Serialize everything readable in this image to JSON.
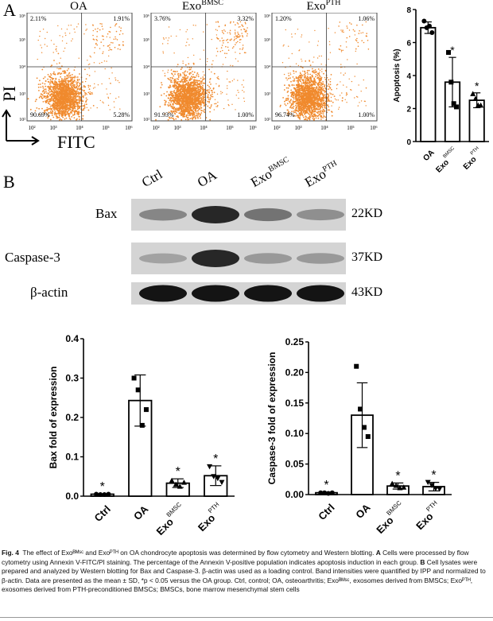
{
  "panel_a": {
    "letter": "A",
    "y_axis": "PI",
    "x_axis": "FITC",
    "ticks": [
      "10²",
      "10³",
      "10⁴",
      "10⁵",
      "10⁶"
    ],
    "plots": [
      {
        "title": "OA",
        "title_sup": "",
        "ul": "2.11%",
        "ur": "1.91%",
        "ll": "90.69%",
        "lr": "5.28%",
        "ur_density": 1.0
      },
      {
        "title": "Exo",
        "title_sup": "BMSC",
        "ul": "3.76%",
        "ur": "3.32%",
        "ll": "91.93%",
        "lr": "1.00%",
        "ur_density": 1.6
      },
      {
        "title": "Exo",
        "title_sup": "PTH",
        "ul": "1.20%",
        "ur": "1.06%",
        "ll": "96.74%",
        "lr": "1.00%",
        "ur_density": 0.6
      }
    ]
  },
  "panel_b": {
    "letter": "B"
  },
  "western_blot": {
    "lanes": [
      "Ctrl",
      "OA",
      "Exo",
      "Exo"
    ],
    "lane_sups": [
      "",
      "",
      "BMSC",
      "PTH"
    ],
    "rows": [
      {
        "name": "Bax",
        "size": "22KD",
        "intensity": [
          0.35,
          0.85,
          0.45,
          0.3
        ]
      },
      {
        "name": "Caspase-3",
        "size": "37KD",
        "intensity": [
          0.2,
          0.85,
          0.25,
          0.25
        ]
      },
      {
        "name": "β-actin",
        "size": "43KD",
        "intensity": [
          0.95,
          0.95,
          0.95,
          0.95
        ]
      }
    ]
  },
  "chart_data": [
    {
      "type": "bar",
      "ylabel": "Apoptosis (%)",
      "categories": [
        "OA",
        "Exo",
        "Exo"
      ],
      "category_sups": [
        "",
        "BMSC",
        "PTH"
      ],
      "values": [
        6.9,
        3.6,
        2.5
      ],
      "sd": [
        0.35,
        1.5,
        0.45
      ],
      "points": [
        [
          7.3,
          6.9,
          7.0,
          6.6
        ],
        [
          5.4,
          3.6,
          2.3,
          2.1
        ],
        [
          2.9,
          2.6,
          2.2,
          2.2
        ]
      ],
      "significance": [
        "",
        "*",
        "*"
      ],
      "ylim": [
        0,
        8
      ],
      "yticks": [
        0,
        2,
        4,
        6,
        8
      ]
    },
    {
      "type": "bar",
      "ylabel": "Bax fold of expression",
      "categories": [
        "Ctrl",
        "OA",
        "Exo",
        "Exo"
      ],
      "category_sups": [
        "",
        "",
        "BMSC",
        "PTH"
      ],
      "values": [
        0.005,
        0.243,
        0.033,
        0.052
      ],
      "sd": [
        0.001,
        0.065,
        0.011,
        0.025
      ],
      "points": [
        [
          0.005,
          0.004,
          0.004,
          0.005
        ],
        [
          0.3,
          0.27,
          0.18,
          0.22
        ],
        [
          0.04,
          0.03,
          0.025,
          0.035
        ],
        [
          0.075,
          0.05,
          0.045,
          0.035
        ]
      ],
      "significance": [
        "*",
        "",
        "*",
        "*"
      ],
      "ylim": [
        0,
        0.4
      ],
      "yticks": [
        "0.0",
        "0.1",
        "0.2",
        "0.3",
        "0.4"
      ]
    },
    {
      "type": "bar",
      "ylabel": "Caspase-3 fold of expression",
      "categories": [
        "Ctrl",
        "OA",
        "Exo",
        "Exo"
      ],
      "category_sups": [
        "",
        "",
        "BMSC",
        "PTH"
      ],
      "values": [
        0.003,
        0.13,
        0.014,
        0.013
      ],
      "sd": [
        0.001,
        0.053,
        0.005,
        0.007
      ],
      "points": [
        [
          0.003,
          0.003,
          0.002,
          0.003
        ],
        [
          0.21,
          0.14,
          0.11,
          0.095
        ],
        [
          0.018,
          0.015,
          0.011,
          0.012
        ],
        [
          0.02,
          0.015,
          0.01,
          0.009
        ]
      ],
      "significance": [
        "*",
        "",
        "*",
        "*"
      ],
      "ylim": [
        0,
        0.25
      ],
      "yticks": [
        "0.00",
        "0.05",
        "0.10",
        "0.15",
        "0.20",
        "0.25"
      ]
    }
  ],
  "caption": {
    "fig": "Fig. 4",
    "text": "The effect of Exoᴮᴹˢᶜ and Exoᴾᵀᴴ on OA chondrocyte apoptosis was determined by flow cytometry and Western blotting.",
    "a_label": "A",
    "a_text": "Cells were processed by flow cytometry using Annexin V-FITC/PI staining. The percentage of the Annexin V-positive population indicates apoptosis induction in each group.",
    "b_label": "B",
    "b_text": "Cell lysates were prepared and analyzed by Western blotting for Bax and Caspase-3. β-actin was used as a loading control. Band intensities were quantified by IPP and normalized to β-actin. Data are presented as the mean ± SD, *p < 0.05 versus the OA group. Ctrl, control; OA, osteoarthritis; Exoᴮᴹˢᶜ, exosomes derived from BMSCs; Exoᴾᵀᴴ, exosomes derived from PTH-preconditioned BMSCs; BMSCs, bone marrow mesenchymal stem cells"
  }
}
